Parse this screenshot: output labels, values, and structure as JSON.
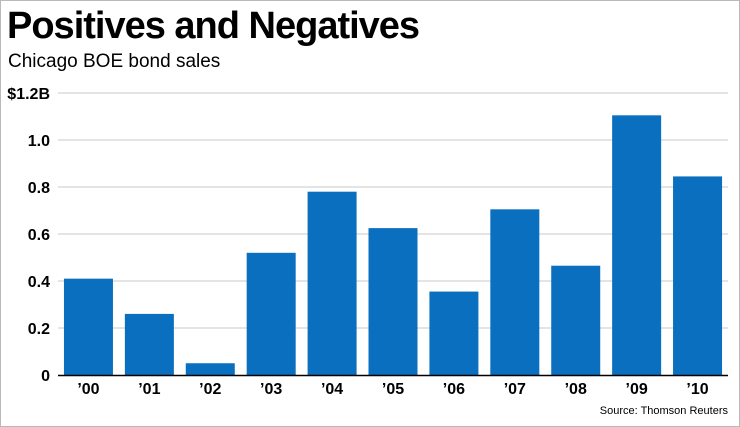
{
  "title": "Positives and Negatives",
  "subtitle": "Chicago BOE bond sales",
  "source": "Source: Thomson Reuters",
  "colors": {
    "bar": "#0a6fbe",
    "gridline": "#c8c8c8",
    "baseline": "#000000"
  },
  "chart_data": {
    "type": "bar",
    "categories": [
      "’00",
      "’01",
      "’02",
      "’03",
      "’04",
      "’05",
      "’06",
      "’07",
      "’08",
      "’09",
      "’10"
    ],
    "values": [
      0.41,
      0.26,
      0.05,
      0.52,
      0.78,
      0.625,
      0.355,
      0.705,
      0.465,
      1.105,
      0.845
    ],
    "ylim": [
      0,
      1.2
    ],
    "yticks": [
      0,
      0.2,
      0.4,
      0.6,
      0.8,
      1.0,
      1.2
    ],
    "ytick_labels": [
      "0",
      "0.2",
      "0.4",
      "0.6",
      "0.8",
      "1.0",
      "$1.2B"
    ],
    "grid": true,
    "legend": false
  }
}
